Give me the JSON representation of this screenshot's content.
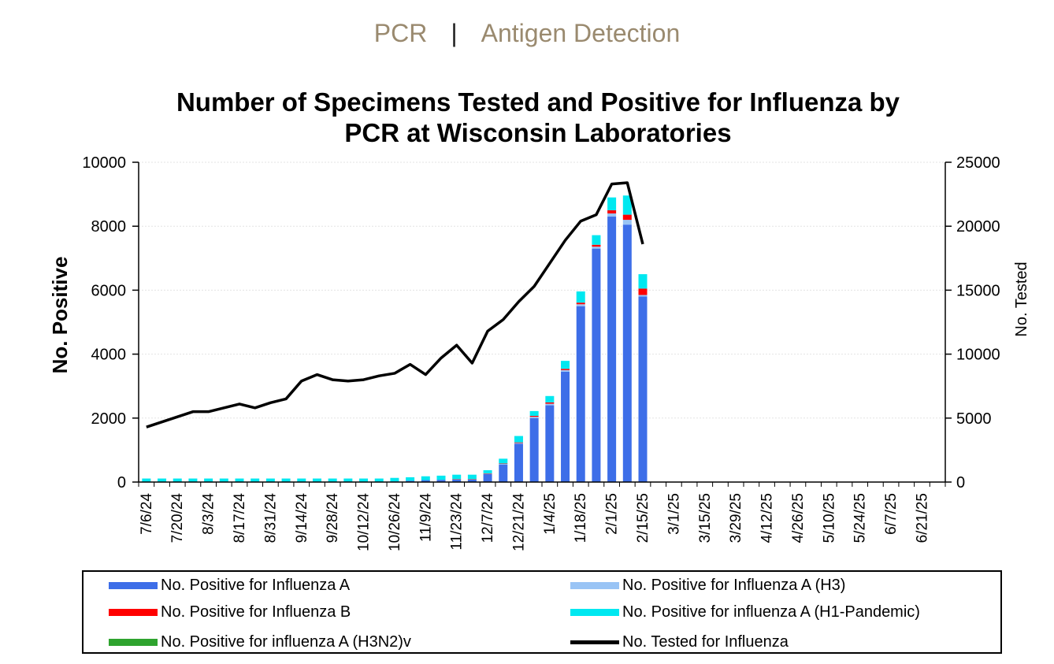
{
  "tabs": {
    "pcr_label": "PCR",
    "separator": "|",
    "antigen_label": "Antigen Detection"
  },
  "colors": {
    "flu_a": "#3d6ee8",
    "flu_a_h3": "#99c4f5",
    "flu_b": "#ff0000",
    "flu_a_h1": "#00e8f0",
    "flu_a_h3n2v": "#2ea32e",
    "tested": "#000000"
  },
  "chart_data": {
    "type": "bar",
    "title_line1": "Number of Specimens Tested and Positive for Influenza by",
    "title_line2": "PCR at Wisconsin Laboratories",
    "ylabel": "No. Positive",
    "y2label": "No. Tested",
    "ylim": [
      0,
      10000
    ],
    "y2lim": [
      0,
      25000
    ],
    "yticks": [
      0,
      2000,
      4000,
      6000,
      8000,
      10000
    ],
    "y2ticks": [
      0,
      5000,
      10000,
      15000,
      20000,
      25000
    ],
    "x_tick_labels": [
      "7/6/24",
      "7/20/24",
      "8/3/24",
      "8/17/24",
      "8/31/24",
      "9/14/24",
      "9/28/24",
      "10/12/24",
      "10/26/24",
      "11/9/24",
      "11/23/24",
      "12/7/24",
      "12/21/24",
      "1/4/25",
      "1/18/25",
      "2/1/25",
      "2/15/25",
      "3/1/25",
      "3/15/25",
      "3/29/25",
      "4/12/25",
      "4/26/25",
      "5/10/25",
      "5/24/25",
      "6/7/25",
      "6/21/25"
    ],
    "weeks": [
      "7/6/24",
      "7/13/24",
      "7/20/24",
      "7/27/24",
      "8/3/24",
      "8/10/24",
      "8/17/24",
      "8/24/24",
      "8/31/24",
      "9/7/24",
      "9/14/24",
      "9/21/24",
      "9/28/24",
      "10/5/24",
      "10/12/24",
      "10/19/24",
      "10/26/24",
      "11/2/24",
      "11/9/24",
      "11/16/24",
      "11/23/24",
      "11/30/24",
      "12/7/24",
      "12/14/24",
      "12/21/24",
      "12/28/24",
      "1/4/25",
      "1/11/25",
      "1/18/25",
      "1/25/25",
      "2/1/25",
      "2/8/25",
      "2/15/25"
    ],
    "series": [
      {
        "name": "No. Positive for Influenza A",
        "key": "flu_a",
        "values": [
          10,
          10,
          10,
          10,
          10,
          10,
          10,
          10,
          10,
          10,
          10,
          10,
          10,
          10,
          10,
          10,
          20,
          40,
          60,
          70,
          80,
          80,
          250,
          550,
          1200,
          2000,
          2400,
          3450,
          5500,
          7300,
          8300,
          8050,
          5800
        ]
      },
      {
        "name": "No. Positive for Influenza A (H3)",
        "key": "flu_a_h3",
        "values": [
          0,
          0,
          0,
          0,
          0,
          0,
          0,
          0,
          0,
          0,
          0,
          0,
          0,
          0,
          0,
          0,
          0,
          0,
          0,
          0,
          0,
          0,
          10,
          20,
          20,
          40,
          50,
          50,
          60,
          60,
          100,
          150,
          50
        ]
      },
      {
        "name": "No. Positive for Influenza B",
        "key": "flu_b",
        "values": [
          0,
          0,
          0,
          0,
          0,
          0,
          0,
          0,
          0,
          0,
          0,
          0,
          0,
          0,
          0,
          0,
          0,
          0,
          0,
          0,
          10,
          10,
          10,
          10,
          20,
          30,
          40,
          40,
          50,
          60,
          100,
          160,
          200
        ]
      },
      {
        "name": "No. Positive for influenza A (H1-Pandemic)",
        "key": "flu_a_h1",
        "values": [
          100,
          100,
          100,
          100,
          100,
          100,
          100,
          100,
          100,
          100,
          100,
          100,
          100,
          100,
          100,
          100,
          110,
          110,
          120,
          130,
          140,
          140,
          100,
          150,
          200,
          150,
          200,
          250,
          350,
          300,
          400,
          600,
          450
        ]
      },
      {
        "name": "No. Positive for influenza A (H3N2)v",
        "key": "flu_a_h3n2v",
        "values": [
          0,
          0,
          0,
          0,
          0,
          0,
          0,
          0,
          0,
          0,
          0,
          0,
          0,
          0,
          0,
          0,
          0,
          0,
          0,
          0,
          0,
          0,
          0,
          0,
          0,
          0,
          0,
          0,
          0,
          0,
          0,
          0,
          0
        ]
      },
      {
        "name": "No. Tested for Influenza",
        "key": "tested",
        "type": "line",
        "axis": "right",
        "values": [
          4300,
          4700,
          5100,
          5500,
          5500,
          5800,
          6100,
          5800,
          6200,
          6500,
          7900,
          8400,
          8000,
          7900,
          8000,
          8300,
          8500,
          9200,
          8400,
          9700,
          10700,
          9300,
          11800,
          12700,
          14100,
          15300,
          17100,
          18900,
          20400,
          20900,
          23300,
          23400,
          18600
        ]
      }
    ],
    "total_weeks": 52,
    "legend_position": "bottom",
    "grid": true
  },
  "legend": {
    "flu_a": "No. Positive for Influenza A",
    "flu_a_h3": "No. Positive for Influenza A (H3)",
    "flu_b": "No. Positive for Influenza B",
    "flu_a_h1": "No. Positive for influenza A (H1-Pandemic)",
    "flu_a_h3n2v": "No. Positive for influenza A (H3N2)v",
    "tested": "No. Tested for Influenza"
  }
}
